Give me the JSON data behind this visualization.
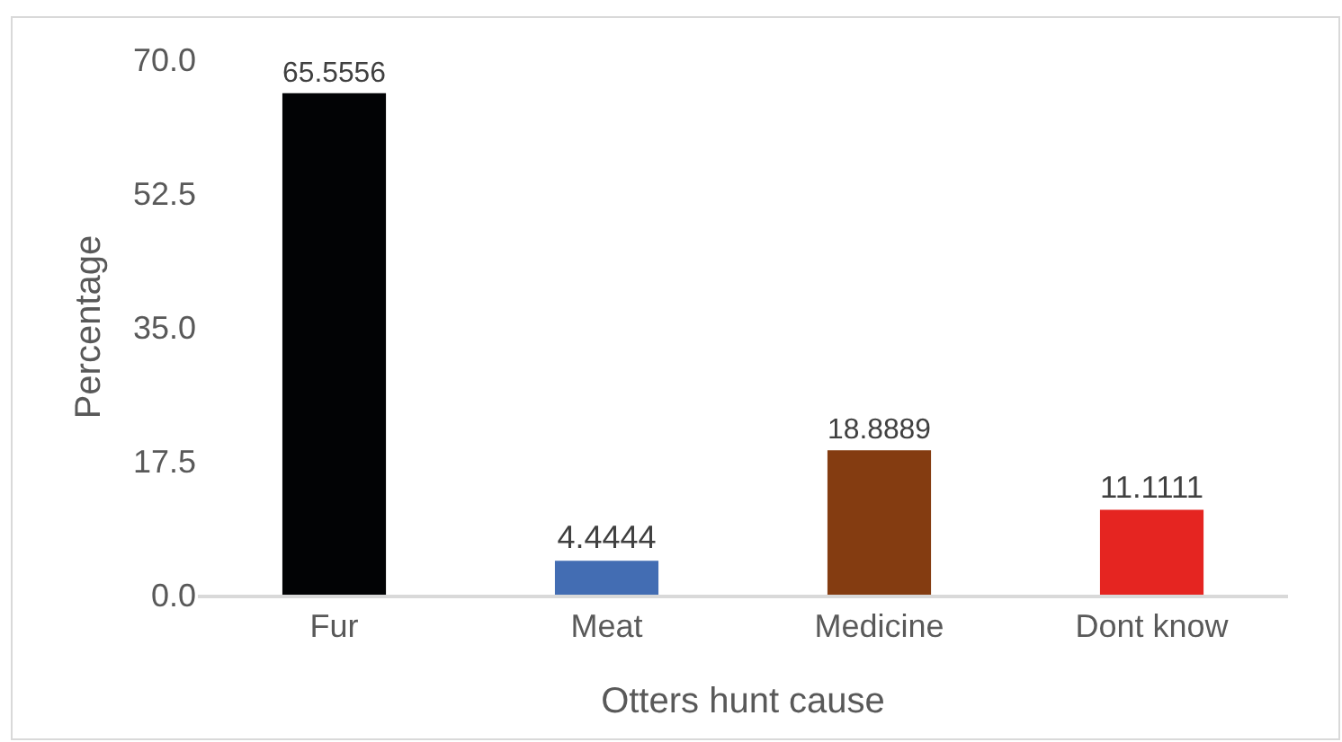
{
  "chart_data": {
    "type": "bar",
    "xlabel": "Otters hunt cause",
    "ylabel": "Percentage",
    "categories": [
      "Fur",
      "Meat",
      "Medicine",
      "Dont know"
    ],
    "values": [
      65.5556,
      4.4444,
      18.8889,
      11.1111
    ],
    "colors": [
      "#020305",
      "#436db3",
      "#843c11",
      "#e52521"
    ],
    "ylim": [
      0,
      70
    ],
    "yticks": [
      {
        "value": 0,
        "label": "0.0"
      },
      17.5,
      {
        "value": 35,
        "label": "35.0"
      },
      52.5,
      {
        "value": 70,
        "label": "70.0"
      }
    ],
    "data_labels": true
  }
}
